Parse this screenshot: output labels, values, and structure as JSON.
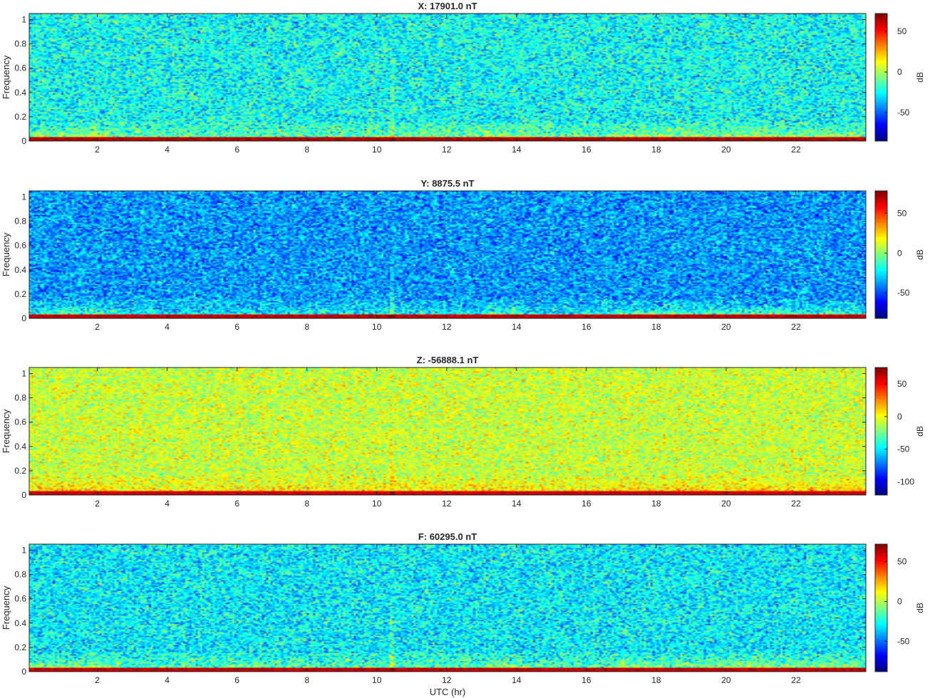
{
  "chart_data": {
    "type": "heatmap",
    "subtype": "spectrogram",
    "xlabel": "UTC (hr)",
    "ylabel": "Frequency",
    "xlim": [
      0.05,
      24.0
    ],
    "ylim": [
      0,
      1.05
    ],
    "xticks": [
      2,
      4,
      6,
      8,
      10,
      12,
      14,
      16,
      18,
      20,
      22
    ],
    "yticks": [
      0,
      0.2,
      0.4,
      0.6,
      0.8,
      1
    ],
    "colormap": "jet",
    "colorbar_label": "dB",
    "grid": false,
    "panels": [
      {
        "title": "X: 17901.0 nT",
        "clim": [
          -85,
          72
        ],
        "colorbar_ticks": [
          -50,
          0,
          50
        ],
        "background_db": -25,
        "low_band_db": 8,
        "floor_db": 66
      },
      {
        "title": "Y: 8875.5 nT",
        "clim": [
          -82,
          78
        ],
        "colorbar_ticks": [
          -50,
          0,
          50
        ],
        "background_db": -38,
        "low_band_db": 2,
        "floor_db": 70
      },
      {
        "title": "Z: -56888.1 nT",
        "clim": [
          -120,
          75
        ],
        "colorbar_ticks": [
          -100,
          -50,
          0,
          50
        ],
        "background_db": -8,
        "low_band_db": 18,
        "floor_db": 62
      },
      {
        "title": "F: 60295.0 nT",
        "clim": [
          -88,
          72
        ],
        "colorbar_ticks": [
          -50,
          0,
          50
        ],
        "background_db": -30,
        "low_band_db": 5,
        "floor_db": 64
      }
    ],
    "features": {
      "impulse_at_hr": 10.45,
      "activity_bursts_hr": [
        [
          0.3,
          2.6
        ],
        [
          13.0,
          14.2
        ],
        [
          16.8,
          23.9
        ]
      ],
      "low_freq_band_max": 0.15
    }
  }
}
